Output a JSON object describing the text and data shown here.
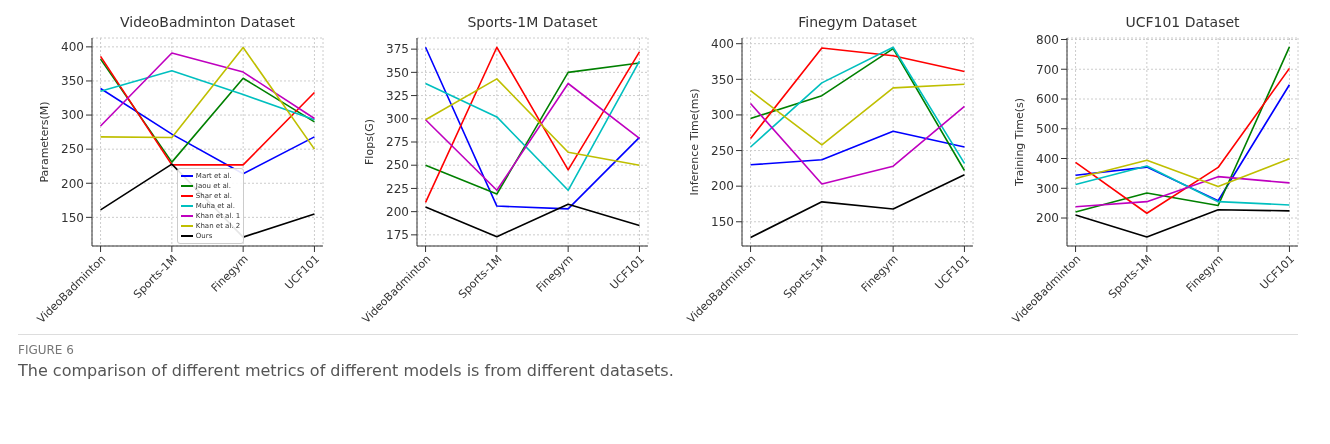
{
  "chart_data": [
    {
      "type": "line",
      "title": "VideoBadminton Dataset",
      "ylabel": "Parameters(M)",
      "categories": [
        "VideoBadminton",
        "Sports-1M",
        "Finegym",
        "UCF101"
      ],
      "ylim": [
        108,
        413
      ],
      "yticks": [
        150,
        200,
        250,
        300,
        350,
        400
      ],
      "grid": true,
      "legend": "bottom",
      "line_style": "solid",
      "marker": "none",
      "annotations": [
        "FIGURE 6",
        "The comparison of different metrics of different models is from different datasets."
      ],
      "series": [
        {
          "name": "Mart et al.",
          "color": "#0000ff",
          "values": [
            339,
            272,
            214,
            268
          ]
        },
        {
          "name": "Jaou et al.",
          "color": "#008000",
          "values": [
            382,
            231,
            354,
            290
          ]
        },
        {
          "name": "Shar et al.",
          "color": "#ff0000",
          "values": [
            386,
            227,
            227,
            333
          ]
        },
        {
          "name": "Muha et al.",
          "color": "#00bfbf",
          "values": [
            335,
            365,
            330,
            293
          ]
        },
        {
          "name": "Khan et al. 1",
          "color": "#bf00bf",
          "values": [
            284,
            391,
            363,
            295
          ]
        },
        {
          "name": "Khan et al. 2",
          "color": "#bfbf00",
          "values": [
            268,
            267,
            399,
            250
          ]
        },
        {
          "name": "Ours",
          "color": "#000000",
          "values": [
            161,
            228,
            121,
            155
          ]
        }
      ]
    },
    {
      "type": "line",
      "title": "Sports-1M Dataset",
      "ylabel": "Flops(G)",
      "categories": [
        "VideoBadminton",
        "Sports-1M",
        "Finegym",
        "UCF101"
      ],
      "ylim": [
        163,
        387
      ],
      "yticks": [
        175,
        200,
        225,
        250,
        275,
        300,
        325,
        350,
        375
      ],
      "grid": true,
      "line_style": "solid",
      "marker": "none",
      "series": [
        {
          "color": "#0000ff",
          "values": [
            377,
            206,
            203,
            280
          ]
        },
        {
          "color": "#008000",
          "values": [
            250,
            219,
            350,
            360
          ]
        },
        {
          "color": "#ff0000",
          "values": [
            210,
            377,
            245,
            372
          ]
        },
        {
          "color": "#00bfbf",
          "values": [
            338,
            302,
            223,
            362
          ]
        },
        {
          "color": "#bf00bf",
          "values": [
            299,
            223,
            338,
            279
          ]
        },
        {
          "color": "#bfbf00",
          "values": [
            299,
            343,
            264,
            250
          ]
        },
        {
          "color": "#000000",
          "values": [
            205,
            173,
            208,
            185
          ]
        }
      ]
    },
    {
      "type": "line",
      "title": "Finegym Dataset",
      "ylabel": "Inference Time(ms)",
      "categories": [
        "VideoBadminton",
        "Sports-1M",
        "Finegym",
        "UCF101"
      ],
      "ylim": [
        116,
        408
      ],
      "yticks": [
        150,
        200,
        250,
        300,
        350,
        400
      ],
      "grid": true,
      "line_style": "solid",
      "marker": "none",
      "series": [
        {
          "color": "#0000ff",
          "values": [
            230,
            237,
            277,
            255
          ]
        },
        {
          "color": "#008000",
          "values": [
            295,
            327,
            393,
            222
          ]
        },
        {
          "color": "#ff0000",
          "values": [
            267,
            394,
            383,
            361
          ]
        },
        {
          "color": "#00bfbf",
          "values": [
            255,
            345,
            395,
            232
          ]
        },
        {
          "color": "#bf00bf",
          "values": [
            316,
            203,
            228,
            312
          ]
        },
        {
          "color": "#bfbf00",
          "values": [
            334,
            258,
            338,
            343
          ]
        },
        {
          "color": "#000000",
          "values": [
            128,
            178,
            168,
            216
          ]
        }
      ]
    },
    {
      "type": "line",
      "title": "UCF101 Dataset",
      "ylabel": "Training Time(s)",
      "categories": [
        "VideoBadminton",
        "Sports-1M",
        "Finegym",
        "UCF101"
      ],
      "ylim": [
        106,
        805
      ],
      "yticks": [
        200,
        300,
        400,
        500,
        600,
        700,
        800
      ],
      "grid": true,
      "line_style": "solid",
      "marker": "none",
      "series": [
        {
          "color": "#0000ff",
          "values": [
            344,
            371,
            258,
            648
          ]
        },
        {
          "color": "#008000",
          "values": [
            220,
            284,
            242,
            775
          ]
        },
        {
          "color": "#ff0000",
          "values": [
            387,
            216,
            370,
            703
          ]
        },
        {
          "color": "#00bfbf",
          "values": [
            313,
            375,
            255,
            244
          ]
        },
        {
          "color": "#bf00bf",
          "values": [
            238,
            255,
            339,
            318
          ]
        },
        {
          "color": "#bfbf00",
          "values": [
            333,
            394,
            306,
            399
          ]
        },
        {
          "color": "#000000",
          "values": [
            210,
            136,
            228,
            224
          ]
        }
      ]
    }
  ]
}
